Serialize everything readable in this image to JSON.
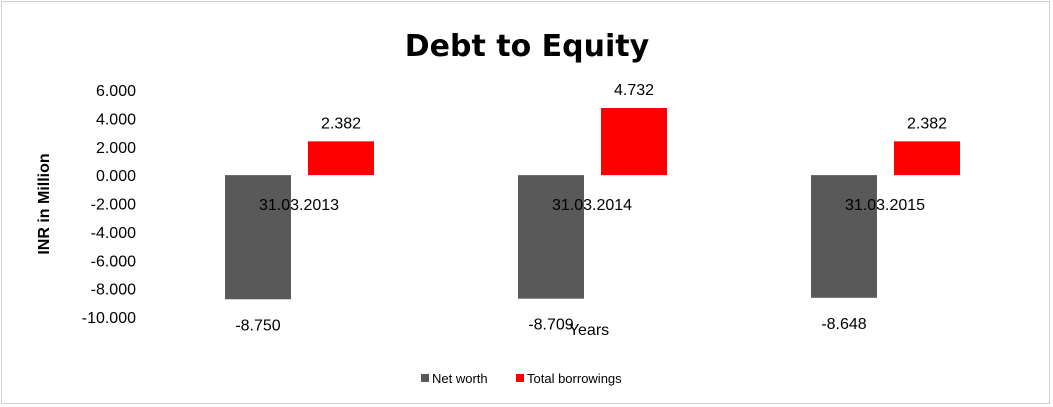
{
  "chart_data": {
    "type": "bar",
    "title": "Debt to Equity",
    "xlabel": "Years",
    "ylabel": "INR in Million",
    "categories": [
      "31.03.2013",
      "31.03.2014",
      "31.03.2015"
    ],
    "series": [
      {
        "name": "Net worth",
        "values": [
          -8.75,
          -8.709,
          -8.648
        ],
        "labels": [
          "-8.750",
          "-8.709",
          "-8.648"
        ],
        "color": "#595959"
      },
      {
        "name": "Total borrowings",
        "values": [
          2.382,
          4.732,
          2.382
        ],
        "labels": [
          "2.382",
          "4.732",
          "2.382"
        ],
        "color": "#ff0000"
      }
    ],
    "ylim": [
      -10,
      6
    ],
    "yticks": [
      6,
      4,
      2,
      0,
      -2,
      -4,
      -6,
      -8,
      -10
    ],
    "ytick_labels": [
      "6.000",
      "4.000",
      "2.000",
      "0.000",
      "-2.000",
      "-4.000",
      "-6.000",
      "-8.000",
      "-10.000"
    ],
    "grid": false,
    "legend_position": "bottom"
  }
}
